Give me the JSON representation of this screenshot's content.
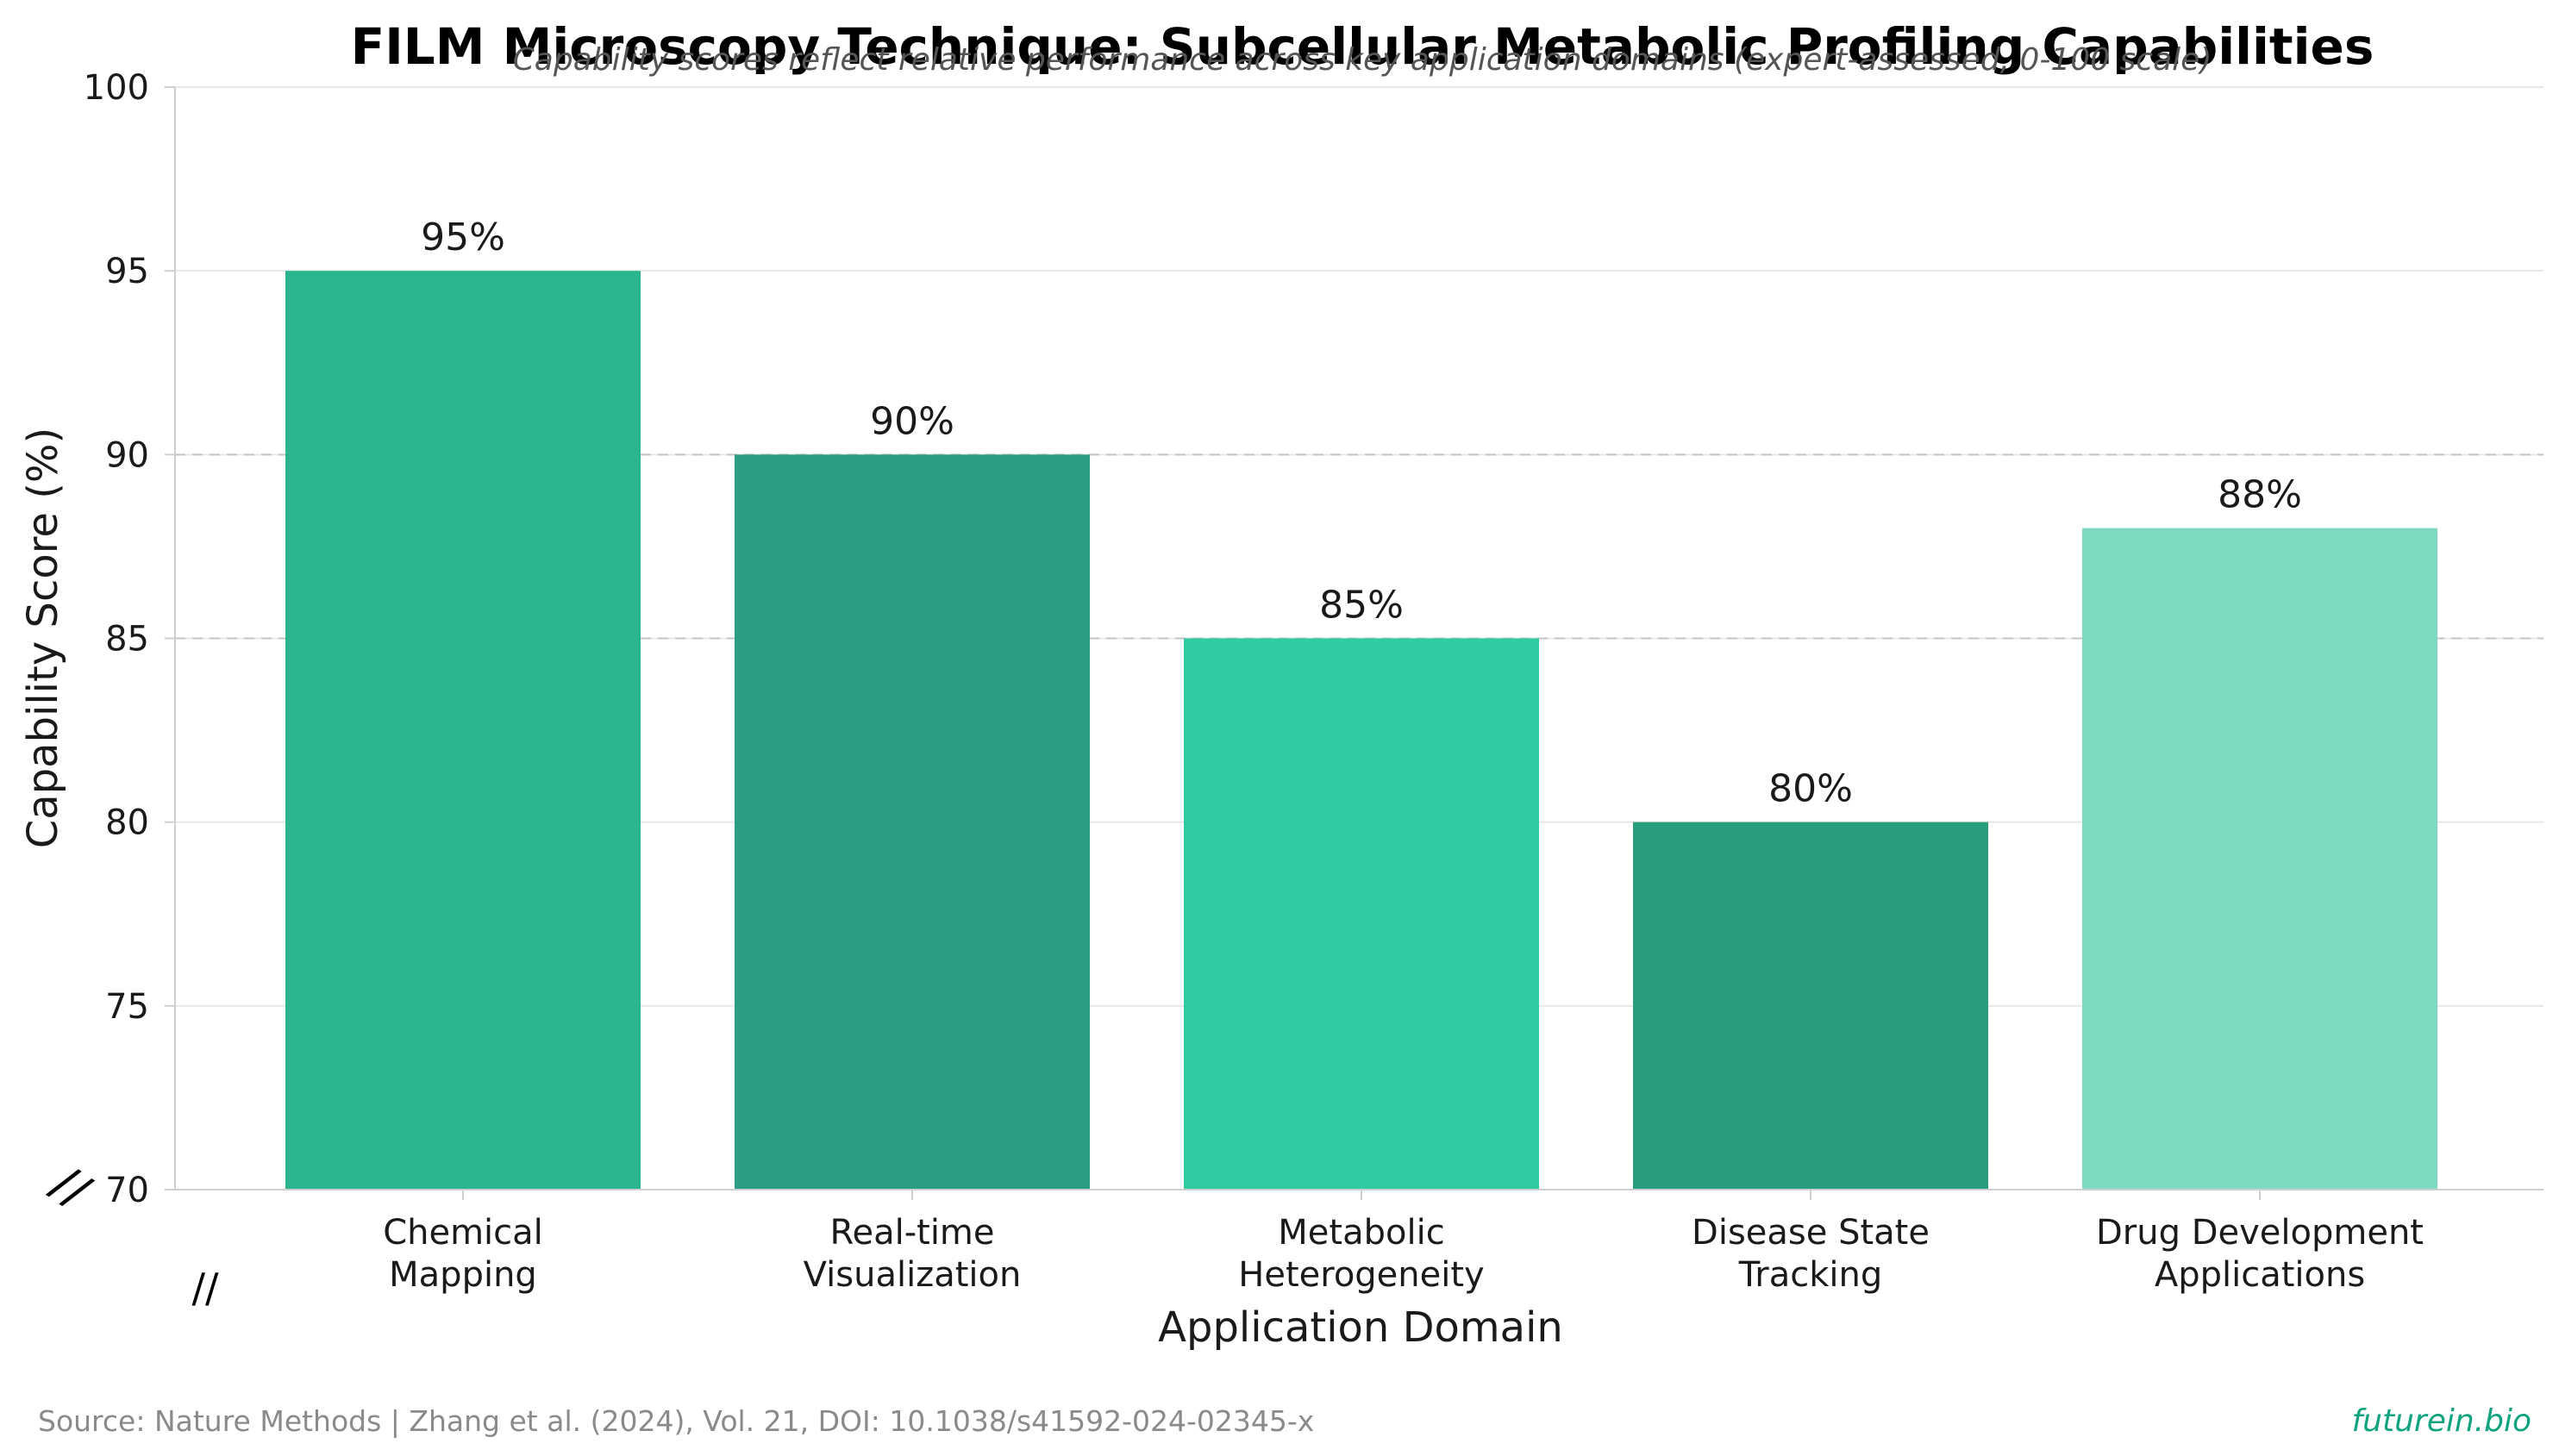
{
  "chart_data": {
    "type": "bar",
    "title": "FILM Microscopy Technique: Subcellular Metabolic Profiling Capabilities",
    "subtitle": "Capability scores reflect relative performance across key application domains (expert-assessed, 0-100 scale)",
    "xlabel": "Application Domain",
    "ylabel": "Capability Score (%)",
    "ylim": [
      70,
      100
    ],
    "yticks": [
      70,
      75,
      80,
      85,
      90,
      95,
      100
    ],
    "grid": true,
    "reference_lines": [
      85,
      90
    ],
    "categories": [
      [
        "Chemical",
        "Mapping"
      ],
      [
        "Real-time",
        "Visualization"
      ],
      [
        "Metabolic",
        "Heterogeneity"
      ],
      [
        "Disease State",
        "Tracking"
      ],
      [
        "Drug Development",
        "Applications"
      ]
    ],
    "values": [
      95,
      90,
      85,
      80,
      88
    ],
    "value_labels": [
      "95%",
      "90%",
      "85%",
      "80%",
      "88%"
    ],
    "bar_colors": [
      "#2bb58f",
      "#2a9d84",
      "#2ecba4",
      "#2a9d7e",
      "#7dd9c0"
    ],
    "axis_break_marks": [
      "//",
      "//"
    ]
  },
  "footer": {
    "source": "Source: Nature Methods | Zhang et al. (2024), Vol. 21, DOI: 10.1038/s41592-024-02345-x",
    "brand": "futurein.bio"
  }
}
